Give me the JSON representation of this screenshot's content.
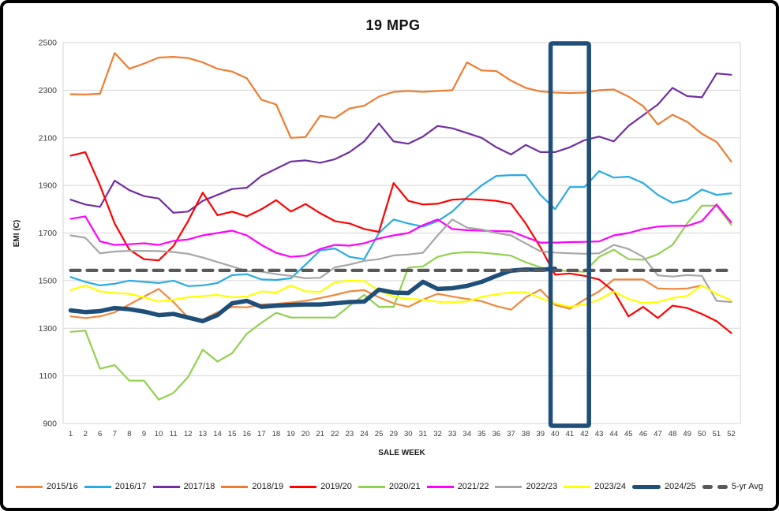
{
  "window": {
    "background": "#ffffff",
    "border_color": "#000000"
  },
  "chart_data": {
    "type": "line",
    "title": "19 MPG",
    "xlabel": "SALE WEEK",
    "ylabel": "EMI (C)",
    "ylim": [
      900,
      2500
    ],
    "ytick_step": 200,
    "yticks": [
      900,
      1100,
      1300,
      1500,
      1700,
      1900,
      2100,
      2300,
      2500
    ],
    "grid": "horizontal",
    "legend_position": "bottom",
    "grid_color": "#d6d6d6",
    "categories": [
      "1",
      "2",
      "6",
      "7",
      "8",
      "9",
      "10",
      "11",
      "12",
      "13",
      "14",
      "15",
      "16",
      "17",
      "18",
      "19",
      "20",
      "21",
      "22",
      "23",
      "24",
      "25",
      "29",
      "30",
      "31",
      "32",
      "33",
      "34",
      "35",
      "36",
      "37",
      "38",
      "39",
      "40",
      "41",
      "42",
      "43",
      "44",
      "45",
      "46",
      "47",
      "48",
      "49",
      "50",
      "51",
      "52"
    ],
    "highlight_box": {
      "from_week": "40",
      "to_week": "42",
      "color": "#1F4E79"
    },
    "series": [
      {
        "name": "2015/16",
        "color": "#F0883E",
        "width": 2.2,
        "values": [
          1350,
          1343,
          1350,
          1367,
          1400,
          1433,
          1465,
          1410,
          1345,
          1336,
          1367,
          1390,
          1388,
          1400,
          1403,
          1408,
          1415,
          1427,
          1440,
          1455,
          1460,
          1430,
          1405,
          1390,
          1420,
          1445,
          1433,
          1423,
          1413,
          1393,
          1378,
          1430,
          1462,
          1398,
          1382,
          1420,
          1455,
          1505,
          1505,
          1505,
          1467,
          1465,
          1467,
          1480,
          null,
          null
        ]
      },
      {
        "name": "2016/17",
        "color": "#29ABE2",
        "width": 2.2,
        "values": [
          1515,
          1495,
          1480,
          1487,
          1500,
          1495,
          1490,
          1500,
          1477,
          1480,
          1490,
          1523,
          1527,
          1505,
          1503,
          1510,
          1567,
          1627,
          1635,
          1600,
          1590,
          1700,
          1757,
          1740,
          1727,
          1750,
          1790,
          1850,
          1900,
          1940,
          1943,
          1943,
          1860,
          1800,
          1893,
          1893,
          1960,
          1933,
          1937,
          1910,
          1860,
          1827,
          1840,
          1883,
          1860,
          1867
        ]
      },
      {
        "name": "2017/18",
        "color": "#7030A0",
        "width": 2.2,
        "values": [
          1840,
          1820,
          1810,
          1920,
          1880,
          1855,
          1845,
          1785,
          1790,
          1835,
          1860,
          1885,
          1890,
          1940,
          1970,
          2000,
          2005,
          1995,
          2010,
          2040,
          2085,
          2160,
          2085,
          2075,
          2105,
          2150,
          2140,
          2120,
          2100,
          2060,
          2030,
          2070,
          2040,
          2040,
          2060,
          2090,
          2105,
          2085,
          2150,
          2195,
          2240,
          2310,
          2275,
          2270,
          2370,
          2365
        ]
      },
      {
        "name": "2018/19",
        "color": "#ED7D31",
        "width": 2.2,
        "values": [
          2283,
          2282,
          2285,
          2456,
          2390,
          2412,
          2437,
          2440,
          2435,
          2417,
          2390,
          2378,
          2350,
          2260,
          2240,
          2100,
          2103,
          2193,
          2183,
          2223,
          2235,
          2273,
          2293,
          2297,
          2293,
          2297,
          2300,
          2417,
          2383,
          2380,
          2340,
          2310,
          2295,
          2290,
          2288,
          2290,
          2300,
          2303,
          2273,
          2233,
          2156,
          2197,
          2167,
          2117,
          2083,
          2000
        ]
      },
      {
        "name": "2019/20",
        "color": "#FF0000",
        "width": 2.2,
        "values": [
          2025,
          2040,
          1900,
          1740,
          1630,
          1590,
          1585,
          1645,
          1750,
          1870,
          1775,
          1790,
          1770,
          1800,
          1838,
          1790,
          1822,
          1783,
          1750,
          1740,
          1717,
          1705,
          1910,
          1835,
          1820,
          1823,
          1840,
          1843,
          1840,
          1835,
          1823,
          1740,
          1640,
          1525,
          1530,
          1520,
          1505,
          1455,
          1350,
          1390,
          1343,
          1395,
          1385,
          1360,
          1330,
          1280
        ]
      },
      {
        "name": "2020/21",
        "color": "#92D050",
        "width": 2.2,
        "values": [
          1285,
          1290,
          1130,
          1145,
          1080,
          1080,
          1000,
          1028,
          1095,
          1210,
          1160,
          1195,
          1277,
          1323,
          1365,
          1345,
          1345,
          1345,
          1345,
          1395,
          1440,
          1390,
          1390,
          1555,
          1560,
          1600,
          1615,
          1620,
          1618,
          1612,
          1605,
          1577,
          1556,
          1543,
          1540,
          1537,
          1600,
          1630,
          1590,
          1588,
          1611,
          1650,
          1740,
          1815,
          1815,
          1735
        ]
      },
      {
        "name": "2021/22",
        "color": "#FF00FF",
        "width": 2.2,
        "values": [
          1760,
          1770,
          1665,
          1650,
          1653,
          1657,
          1650,
          1667,
          1673,
          1690,
          1700,
          1710,
          1690,
          1650,
          1617,
          1600,
          1605,
          1633,
          1650,
          1647,
          1657,
          1677,
          1690,
          1700,
          1733,
          1757,
          1717,
          1712,
          1710,
          1708,
          1707,
          1683,
          1660,
          1660,
          1662,
          1663,
          1665,
          1690,
          1700,
          1717,
          1727,
          1730,
          1730,
          1750,
          1820,
          1745
        ]
      },
      {
        "name": "2022/23",
        "color": "#A6A6A6",
        "width": 2.2,
        "values": [
          1690,
          1680,
          1615,
          1622,
          1625,
          1625,
          1624,
          1620,
          1613,
          1597,
          1578,
          1560,
          1540,
          1538,
          1527,
          1520,
          1510,
          1512,
          1556,
          1567,
          1583,
          1590,
          1606,
          1610,
          1617,
          1690,
          1757,
          1723,
          1715,
          1700,
          1690,
          1656,
          1623,
          1618,
          1615,
          1613,
          1615,
          1650,
          1633,
          1600,
          1522,
          1517,
          1523,
          1520,
          1415,
          1410
        ]
      },
      {
        "name": "2023/24",
        "color": "#FFFF00",
        "width": 2.2,
        "values": [
          1460,
          1480,
          1455,
          1448,
          1445,
          1430,
          1412,
          1420,
          1430,
          1435,
          1440,
          1430,
          1433,
          1455,
          1450,
          1480,
          1455,
          1453,
          1493,
          1500,
          1498,
          1458,
          1433,
          1423,
          1420,
          1411,
          1410,
          1412,
          1432,
          1443,
          1450,
          1452,
          1427,
          1405,
          1390,
          1400,
          1420,
          1455,
          1423,
          1406,
          1410,
          1427,
          1436,
          1480,
          1444,
          1417
        ]
      },
      {
        "name": "2024/25",
        "color": "#1F4E79",
        "width": 5.5,
        "swatch": "thick",
        "values": [
          1375,
          1368,
          1372,
          1385,
          1380,
          1370,
          1355,
          1360,
          1345,
          1330,
          1355,
          1405,
          1415,
          1390,
          1395,
          1398,
          1400,
          1400,
          1405,
          1410,
          1412,
          1462,
          1450,
          1448,
          1495,
          1465,
          1468,
          1478,
          1495,
          1520,
          1542,
          1547,
          1545,
          1550,
          null,
          null,
          null,
          null,
          null,
          null,
          null,
          null,
          null,
          null,
          null,
          null
        ]
      },
      {
        "name": "5-yr Avg",
        "color": "#595959",
        "width": 4.2,
        "dash": "12 9",
        "swatch": "dashes",
        "constant": 1543
      }
    ]
  }
}
